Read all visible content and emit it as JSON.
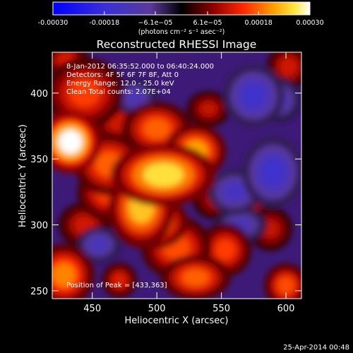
{
  "chart_data": {
    "type": "heatmap",
    "title": "Reconstructed RHESSI Image",
    "xlabel": "Heliocentric X (arcsec)",
    "ylabel": "Heliocentric Y (arcsec)",
    "xlim": [
      419,
      612
    ],
    "ylim": [
      244,
      431
    ],
    "x_ticks": [
      450,
      500,
      550,
      600
    ],
    "y_ticks": [
      250,
      300,
      350,
      400
    ],
    "colorbar": {
      "min": -0.0003,
      "max": 0.0003,
      "colormap": "blue-purple-black-red-orange-yellow-white",
      "tick_values": [
        -0.0003,
        -0.00018,
        -6.1e-05,
        6.1e-05,
        0.00018,
        0.0003
      ],
      "tick_labels": [
        "-0.00030",
        "-0.00018",
        "−6.1e−05",
        "6.1e−05",
        "0.00018",
        "0.00030"
      ],
      "unit_label": "(photons cm⁻² s⁻¹ asec⁻²)"
    },
    "annotations": [
      "8-Jan-2012 06:35:52.000 to 06:40:24.000",
      "Detectors: 4F 5F 6F 7F 8F, Att 0",
      "Energy Range: 12.0 - 25.0 keV",
      "Clean    Total counts: 2.07E+04"
    ],
    "peak_label": "Position of Peak = [433,363]",
    "sources": [
      {
        "x": 433,
        "y": 363,
        "rx": 14,
        "ry": 14,
        "value": 0.0003
      },
      {
        "x": 505,
        "y": 338,
        "rx": 24,
        "ry": 14,
        "value": 0.00026
      },
      {
        "x": 488,
        "y": 313,
        "rx": 15,
        "ry": 18,
        "value": 0.00024
      },
      {
        "x": 497,
        "y": 302,
        "rx": 16,
        "ry": 12,
        "value": 0.00023
      },
      {
        "x": 530,
        "y": 356,
        "rx": 14,
        "ry": 12,
        "value": 0.00022
      },
      {
        "x": 463,
        "y": 346,
        "rx": 16,
        "ry": 14,
        "value": 0.00018
      },
      {
        "x": 500,
        "y": 373,
        "rx": 16,
        "ry": 12,
        "value": 0.00018
      },
      {
        "x": 444,
        "y": 400,
        "rx": 18,
        "ry": 16,
        "value": 0.00016
      },
      {
        "x": 462,
        "y": 324,
        "rx": 14,
        "ry": 12,
        "value": 0.00016
      },
      {
        "x": 515,
        "y": 283,
        "rx": 16,
        "ry": 14,
        "value": 0.00017
      },
      {
        "x": 553,
        "y": 281,
        "rx": 12,
        "ry": 12,
        "value": 0.00016
      },
      {
        "x": 530,
        "y": 260,
        "rx": 16,
        "ry": 10,
        "value": 0.00018
      },
      {
        "x": 428,
        "y": 262,
        "rx": 14,
        "ry": 14,
        "value": 0.0002
      },
      {
        "x": 600,
        "y": 254,
        "rx": 10,
        "ry": 10,
        "value": 0.00017
      },
      {
        "x": 471,
        "y": 258,
        "rx": 8,
        "ry": 8,
        "value": 0.00013
      },
      {
        "x": 588,
        "y": 297,
        "rx": 10,
        "ry": 10,
        "value": 0.00011
      },
      {
        "x": 540,
        "y": 388,
        "rx": 10,
        "ry": 8,
        "value": 0.00011
      },
      {
        "x": 470,
        "y": 378,
        "rx": 12,
        "ry": 10,
        "value": 0.00012
      },
      {
        "x": 444,
        "y": 300,
        "rx": 12,
        "ry": 10,
        "value": 0.00012
      },
      {
        "x": 602,
        "y": 420,
        "rx": 10,
        "ry": 10,
        "value": 0.00012
      },
      {
        "x": 430,
        "y": 425,
        "rx": 10,
        "ry": 8,
        "value": 0.00013
      },
      {
        "x": 575,
        "y": 310,
        "rx": 8,
        "ry": 8,
        "value": 0.0001
      },
      {
        "x": 545,
        "y": 318,
        "rx": 10,
        "ry": 8,
        "value": 0.0001
      },
      {
        "x": 575,
        "y": 398,
        "rx": 14,
        "ry": 14,
        "value": -0.00016
      },
      {
        "x": 590,
        "y": 340,
        "rx": 14,
        "ry": 16,
        "value": -0.00016
      },
      {
        "x": 560,
        "y": 325,
        "rx": 12,
        "ry": 10,
        "value": -0.00014
      },
      {
        "x": 483,
        "y": 397,
        "rx": 10,
        "ry": 8,
        "value": -0.00012
      },
      {
        "x": 455,
        "y": 285,
        "rx": 10,
        "ry": 8,
        "value": -0.00013
      },
      {
        "x": 565,
        "y": 300,
        "rx": 12,
        "ry": 8,
        "value": -0.00012
      },
      {
        "x": 595,
        "y": 395,
        "rx": 10,
        "ry": 10,
        "value": -0.00012
      }
    ]
  },
  "footer_date": "25-Apr-2014 00:48"
}
